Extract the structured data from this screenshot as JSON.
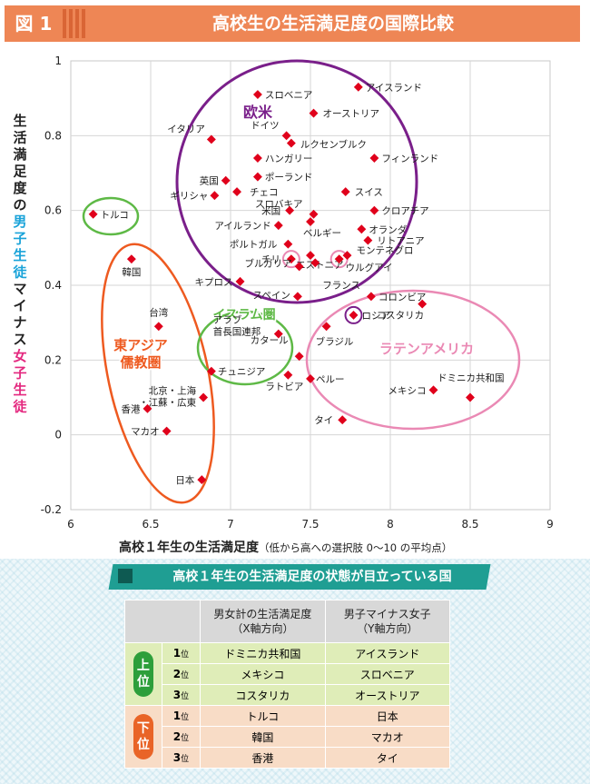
{
  "header": {
    "fig_label": "図 1",
    "title": "高校生の生活満足度の国際比較"
  },
  "chart_data": {
    "type": "scatter",
    "title": "高校生の生活満足度の国際比較",
    "xlabel_main": "高校１年生の生活満足度",
    "xlabel_note": "（低から高への選択肢 0〜10 の平均点）",
    "ylabel_parts": [
      {
        "text": "生活満足度の",
        "color": "#222222"
      },
      {
        "text": "男子生徒",
        "color": "#1aa3d9"
      },
      {
        "text": "マイナス",
        "color": "#222222"
      },
      {
        "text": "女子生徒",
        "color": "#e4287f"
      }
    ],
    "xlim": [
      6,
      9
    ],
    "ylim": [
      -0.2,
      1
    ],
    "xticks": [
      6,
      6.5,
      7,
      7.5,
      8,
      8.5,
      9
    ],
    "yticks": [
      -0.2,
      0,
      0.2,
      0.4,
      0.6,
      0.8,
      1
    ],
    "xtick_labels": [
      "6",
      "6.5",
      "7",
      "7.5",
      "8",
      "8.5",
      "9"
    ],
    "ytick_labels": [
      "-0.2",
      "0",
      "0.2",
      "0.4",
      "0.6",
      "0.8",
      "1"
    ],
    "point_color": "#e0001b",
    "points": [
      {
        "label": "アイスランド",
        "x": 7.8,
        "y": 0.93
      },
      {
        "label": "スロベニア",
        "x": 7.17,
        "y": 0.91
      },
      {
        "label": "オーストリア",
        "x": 7.52,
        "y": 0.86
      },
      {
        "label": "ドイツ",
        "x": 7.35,
        "y": 0.8
      },
      {
        "label": "イタリア",
        "x": 6.88,
        "y": 0.79
      },
      {
        "label": "ルクセンブルク",
        "x": 7.38,
        "y": 0.78
      },
      {
        "label": "ハンガリー",
        "x": 7.17,
        "y": 0.74
      },
      {
        "label": "フィンランド",
        "x": 7.9,
        "y": 0.74
      },
      {
        "label": "英国",
        "x": 6.97,
        "y": 0.68
      },
      {
        "label": "ポーランド",
        "x": 7.17,
        "y": 0.69
      },
      {
        "label": "ギリシャ",
        "x": 6.9,
        "y": 0.64
      },
      {
        "label": "チェコ",
        "x": 7.04,
        "y": 0.65
      },
      {
        "label": "スイス",
        "x": 7.72,
        "y": 0.65
      },
      {
        "label": "スロバキア",
        "x": 7.52,
        "y": 0.59
      },
      {
        "label": "米国",
        "x": 7.37,
        "y": 0.6
      },
      {
        "label": "クロアチア",
        "x": 7.9,
        "y": 0.6
      },
      {
        "label": "アイルランド",
        "x": 7.3,
        "y": 0.56
      },
      {
        "label": "ベルギー",
        "x": 7.5,
        "y": 0.57
      },
      {
        "label": "オランダ",
        "x": 7.82,
        "y": 0.55
      },
      {
        "label": "トルコ",
        "x": 6.14,
        "y": 0.59
      },
      {
        "label": "ポルトガル",
        "x": 7.36,
        "y": 0.51
      },
      {
        "label": "リトアニア",
        "x": 7.86,
        "y": 0.52
      },
      {
        "label": "エストニア",
        "x": 7.5,
        "y": 0.48
      },
      {
        "label": "モンテネグロ",
        "x": 7.73,
        "y": 0.48
      },
      {
        "label": "チリ",
        "x": 7.38,
        "y": 0.47
      },
      {
        "label": "ウルグアイ",
        "x": 7.68,
        "y": 0.47
      },
      {
        "label": "韓国",
        "x": 6.38,
        "y": 0.47
      },
      {
        "label": "ブルガリア",
        "x": 7.43,
        "y": 0.45
      },
      {
        "label": "キプロス",
        "x": 7.06,
        "y": 0.41
      },
      {
        "label": "フランス",
        "x": 7.53,
        "y": 0.46
      },
      {
        "label": "スペイン",
        "x": 7.42,
        "y": 0.37
      },
      {
        "label": "コロンビア",
        "x": 7.88,
        "y": 0.37
      },
      {
        "label": "コスタリカ",
        "x": 8.2,
        "y": 0.35
      },
      {
        "label": "ロシア",
        "x": 7.77,
        "y": 0.32
      },
      {
        "label": "台湾",
        "x": 6.55,
        "y": 0.29
      },
      {
        "label": "ブラジル",
        "x": 7.6,
        "y": 0.29
      },
      {
        "label": "アラブ首長国連邦",
        "x": 7.3,
        "y": 0.27
      },
      {
        "label": "カタール",
        "x": 7.43,
        "y": 0.21
      },
      {
        "label": "チュニジア",
        "x": 6.88,
        "y": 0.17
      },
      {
        "label": "ラトビア",
        "x": 7.36,
        "y": 0.16
      },
      {
        "label": "ペルー",
        "x": 7.5,
        "y": 0.15
      },
      {
        "label": "北京・上海・江蘇・広東",
        "x": 6.83,
        "y": 0.1
      },
      {
        "label": "メキシコ",
        "x": 8.27,
        "y": 0.12
      },
      {
        "label": "ドミニカ共和国",
        "x": 8.5,
        "y": 0.1
      },
      {
        "label": "香港",
        "x": 6.48,
        "y": 0.07
      },
      {
        "label": "タイ",
        "x": 7.7,
        "y": 0.04
      },
      {
        "label": "マカオ",
        "x": 6.6,
        "y": 0.01
      },
      {
        "label": "日本",
        "x": 6.82,
        "y": -0.12
      }
    ],
    "groups": [
      {
        "label": "欧米",
        "color": "#7a1f8a"
      },
      {
        "label": "トルコ",
        "color": "#5eb946"
      },
      {
        "label": "東アジア儒教圏",
        "color": "#ee5a20"
      },
      {
        "label": "イスラム圏",
        "color": "#5eb946"
      },
      {
        "label": "ラテンアメリカ",
        "color": "#ea89b4"
      }
    ]
  },
  "table": {
    "subheader": "高校１年生の生活満足度の状態が目立っている国",
    "col_headers": [
      "男女計の生活満足度\n（X軸方向）",
      "男子マイナス女子\n（Y軸方向）"
    ],
    "top": {
      "label": "上位",
      "rows": [
        {
          "rank": "1",
          "unit": "位",
          "x": "ドミニカ共和国",
          "y": "アイスランド"
        },
        {
          "rank": "2",
          "unit": "位",
          "x": "メキシコ",
          "y": "スロベニア"
        },
        {
          "rank": "3",
          "unit": "位",
          "x": "コスタリカ",
          "y": "オーストリア"
        }
      ]
    },
    "bottom": {
      "label": "下位",
      "rows": [
        {
          "rank": "1",
          "unit": "位",
          "x": "トルコ",
          "y": "日本"
        },
        {
          "rank": "2",
          "unit": "位",
          "x": "韓国",
          "y": "マカオ"
        },
        {
          "rank": "3",
          "unit": "位",
          "x": "香港",
          "y": "タイ"
        }
      ]
    }
  }
}
